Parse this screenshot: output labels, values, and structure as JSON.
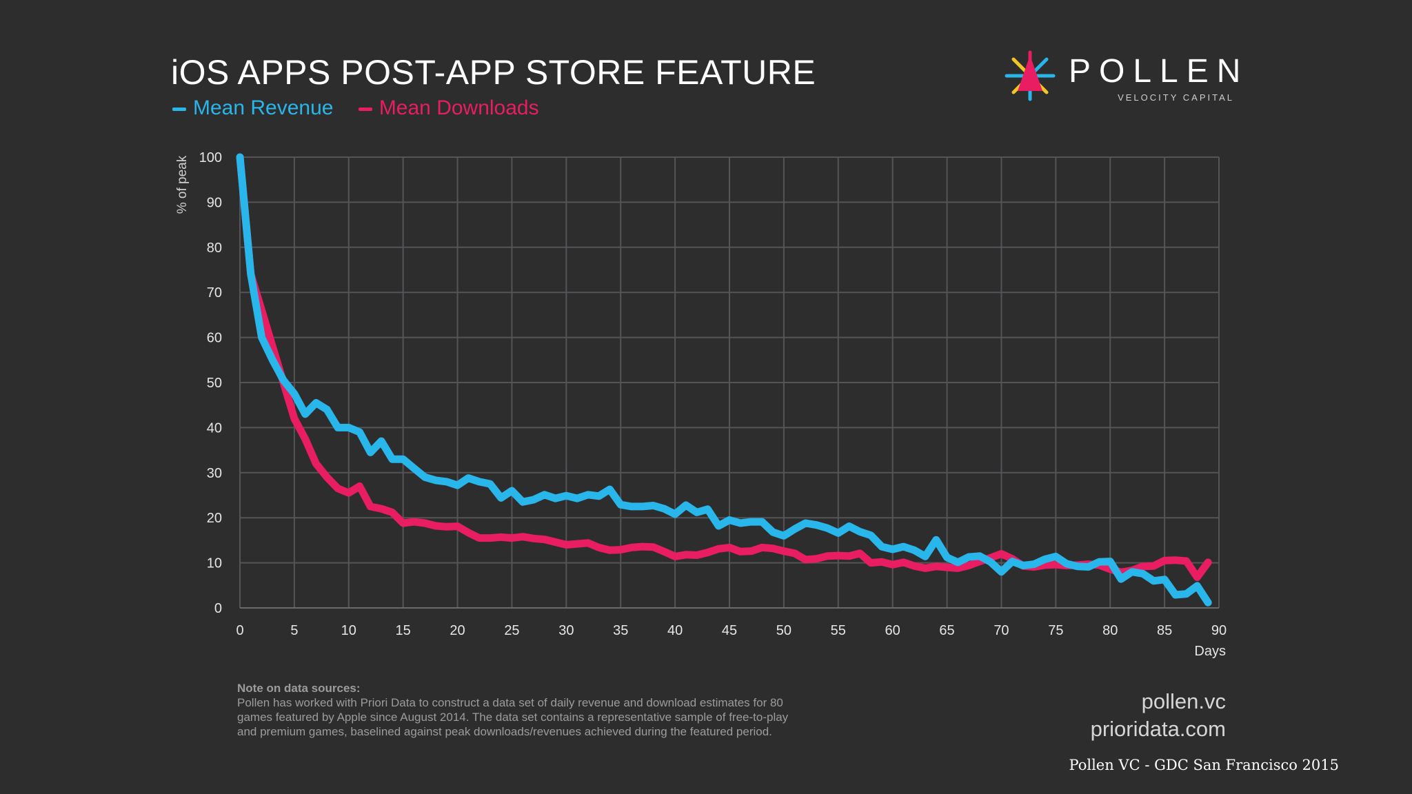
{
  "header": {
    "title": "iOS APPS POST-APP STORE FEATURE"
  },
  "legend": [
    {
      "label": "Mean Revenue",
      "color": "#29b6ea"
    },
    {
      "label": "Mean Downloads",
      "color": "#e81d62"
    }
  ],
  "logo": {
    "word": "POLLEN",
    "sub": "VELOCITY CAPITAL",
    "icon": "pollen-star-icon"
  },
  "note": {
    "heading": "Note on data sources:",
    "lines": [
      "Pollen has worked with Priori Data to construct a data set of daily revenue and download estimates for 80",
      "games featured by Apple since August 2014. The data set contains a representative sample of free-to-play",
      "and premium games, baselined against peak downloads/revenues achieved during the featured period."
    ]
  },
  "links": [
    "pollen.vc",
    "prioridata.com"
  ],
  "caption": "Pollen VC - GDC San Francisco 2015",
  "chart_data": {
    "type": "line",
    "title": "iOS APPS POST-APP STORE FEATURE",
    "xlabel": "Days",
    "ylabel": "% of peak",
    "xlim": [
      0,
      90
    ],
    "ylim": [
      0,
      100
    ],
    "xticks": [
      0,
      5,
      10,
      15,
      20,
      25,
      30,
      35,
      40,
      45,
      50,
      55,
      60,
      65,
      70,
      75,
      80,
      85,
      90
    ],
    "yticks": [
      0,
      10,
      20,
      30,
      40,
      50,
      60,
      70,
      80,
      90,
      100
    ],
    "grid": true,
    "legend_position": "top-left",
    "x": [
      0,
      1,
      2,
      3,
      4,
      5,
      6,
      7,
      8,
      9,
      10,
      11,
      12,
      13,
      14,
      15,
      16,
      17,
      18,
      19,
      20,
      21,
      22,
      23,
      24,
      25,
      26,
      27,
      28,
      29,
      30,
      31,
      32,
      33,
      34,
      35,
      36,
      37,
      38,
      39,
      40,
      41,
      42,
      43,
      44,
      45,
      46,
      47,
      48,
      49,
      50,
      51,
      52,
      53,
      54,
      55,
      56,
      57,
      58,
      59,
      60,
      61,
      62,
      63,
      64,
      65,
      66,
      67,
      68,
      69,
      70,
      71,
      72,
      73,
      74,
      75,
      76,
      77,
      78,
      79,
      80,
      81,
      82,
      83,
      84,
      85,
      86,
      87,
      88,
      89
    ],
    "series": [
      {
        "name": "Mean Revenue",
        "color": "#29b6ea",
        "values": [
          100,
          74,
          60,
          55,
          50.5,
          47.5,
          43,
          45.5,
          44,
          40,
          40,
          39,
          34.5,
          37,
          33,
          33,
          31,
          29,
          28.3,
          28,
          27.2,
          28.8,
          28,
          27.5,
          24.4,
          26,
          23.5,
          24,
          25.1,
          24.3,
          24.9,
          24.3,
          25.1,
          24.8,
          26.3,
          22.9,
          22.5,
          22.5,
          22.7,
          22,
          20.8,
          22.8,
          21.2,
          21.9,
          18.2,
          19.5,
          18.8,
          19.1,
          19.1,
          16.8,
          16,
          17.5,
          18.8,
          18.4,
          17.7,
          16.6,
          18.1,
          16.9,
          16.1,
          13.6,
          13,
          13.6,
          12.8,
          11.4,
          15.1,
          11.2,
          10.1,
          11.3,
          11.5,
          10.2,
          8,
          10.3,
          9.4,
          9.7,
          10.8,
          11.4,
          9.8,
          9.2,
          9.1,
          10.2,
          10.3,
          6.4,
          8,
          7.6,
          6,
          6.3,
          2.9,
          3.1,
          4.9,
          1.2
        ]
      },
      {
        "name": "Mean Downloads",
        "color": "#e81d62",
        "values": [
          100,
          74,
          66,
          58,
          50,
          42,
          37.5,
          32,
          29,
          26.5,
          25.5,
          27,
          22.5,
          22,
          21.2,
          18.8,
          19.1,
          18.8,
          18.2,
          18,
          18.1,
          16.7,
          15.5,
          15.5,
          15.7,
          15.5,
          15.8,
          15.4,
          15.2,
          14.6,
          14,
          14.2,
          14.4,
          13.4,
          12.8,
          12.9,
          13.4,
          13.6,
          13.5,
          12.5,
          11.4,
          11.8,
          11.7,
          12.3,
          13.1,
          13.4,
          12.5,
          12.6,
          13.4,
          13.2,
          12.6,
          12.1,
          10.7,
          10.9,
          11.5,
          11.6,
          11.5,
          12.1,
          10,
          10.2,
          9.6,
          10.1,
          9.3,
          8.8,
          9.2,
          9,
          8.8,
          9.4,
          10.3,
          11.1,
          12,
          10.9,
          9.3,
          9.1,
          9.5,
          9.6,
          9.4,
          9.5,
          9.7,
          9.5,
          8.6,
          7.9,
          8.3,
          9.2,
          9.3,
          10.5,
          10.6,
          10.4,
          6.8,
          10.1
        ]
      }
    ]
  }
}
